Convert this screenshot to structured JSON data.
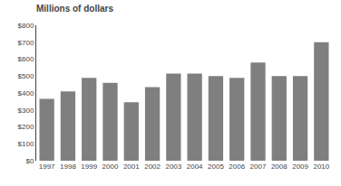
{
  "chart_data": {
    "type": "bar",
    "title": "Millions of dollars",
    "categories": [
      "1997",
      "1998",
      "1999",
      "2000",
      "2001",
      "2002",
      "2003",
      "2004",
      "2005",
      "2006",
      "2007",
      "2008",
      "2009",
      "2010"
    ],
    "values": [
      365,
      410,
      490,
      460,
      345,
      435,
      515,
      515,
      500,
      490,
      580,
      500,
      500,
      700
    ],
    "color": "#7f7f7f",
    "ylim": [
      0,
      800
    ],
    "yticks": [
      {
        "value": 0,
        "label": "$0"
      },
      {
        "value": 100,
        "label": "$100"
      },
      {
        "value": 200,
        "label": "$200"
      },
      {
        "value": 300,
        "label": "$300"
      },
      {
        "value": 400,
        "label": "$400"
      },
      {
        "value": 500,
        "label": "$500"
      },
      {
        "value": 600,
        "label": "$600"
      },
      {
        "value": 700,
        "label": "$700"
      },
      {
        "value": 800,
        "label": "$800"
      }
    ],
    "grid": false
  }
}
